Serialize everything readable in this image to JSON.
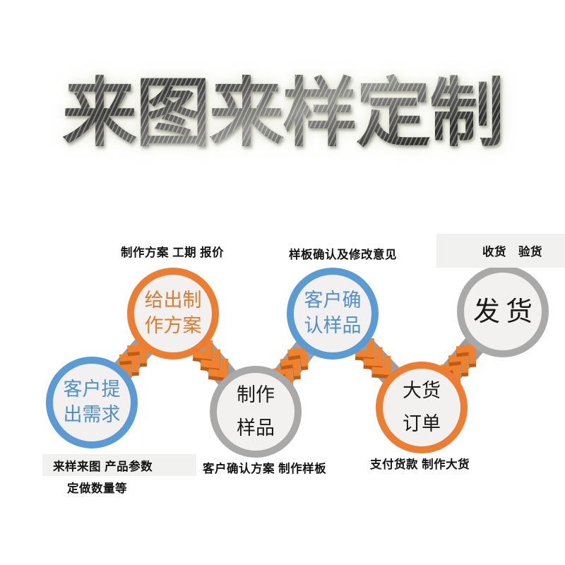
{
  "title": "来图来样定制",
  "flow": {
    "steps": [
      {
        "name": "customer-needs",
        "line1": "客户提",
        "line2": "出需求",
        "ring_color": "#5B9BD5",
        "text_color": "#4E8FCC"
      },
      {
        "name": "provide-plan",
        "line1": "给出制",
        "line2": "作方案",
        "ring_color": "#ED7D31",
        "text_color": "#DE7A2E"
      },
      {
        "name": "make-sample",
        "line1": "制作",
        "line2": "样品",
        "ring_color": "#A9A9A9",
        "text_color": "#1A1A1A"
      },
      {
        "name": "confirm-sample",
        "line1": "客户确",
        "line2": "认样品",
        "ring_color": "#5B9BD5",
        "text_color": "#4E8FCC"
      },
      {
        "name": "bulk-order",
        "line1": "大货",
        "line2": "订单",
        "ring_color": "#ED7D31",
        "text_color": "#1A1A1A"
      },
      {
        "name": "ship",
        "line1": "发货",
        "line2": "",
        "ring_color": "#A9A9A9",
        "text_color": "#1A1A1A"
      }
    ],
    "annotations": {
      "top_left": "制作方案 工期 报价",
      "top_middle": "样板确认及修改意见",
      "top_right": "收货　验货",
      "bottom_left_line1": "来样来图 产品参数",
      "bottom_left_line2": "定做数量等",
      "bottom_middle": "客户确认方案 制作样板",
      "bottom_right": "支付货款 制作大货"
    }
  },
  "colors": {
    "blue": "#5B9BD5",
    "orange": "#ED7D31",
    "gray": "#A9A9A9",
    "band_gray": "#9D9DA1",
    "chevron_orange": "#F0822D",
    "chevron_shadow": "#BE5B15",
    "circle_fill": "#F2F1EF",
    "label_bg": "#F1F1F0",
    "text_dark": "#1A1A1A"
  }
}
